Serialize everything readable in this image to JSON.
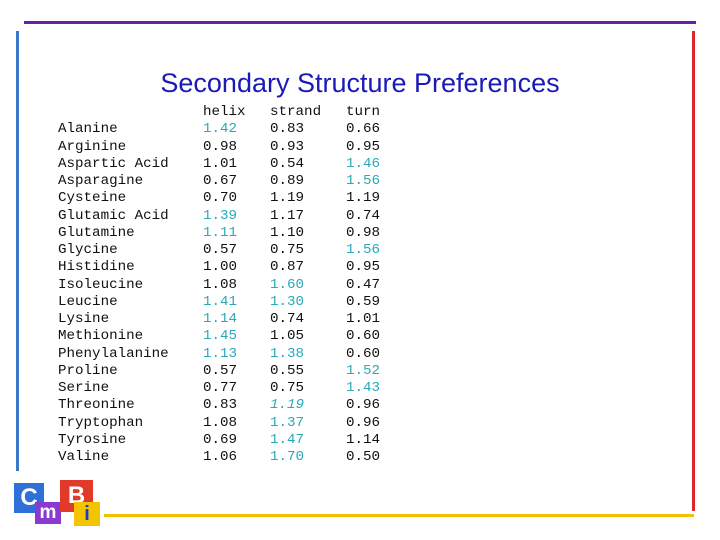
{
  "title": "Secondary Structure Preferences",
  "table": {
    "headers": {
      "name": "",
      "helix": "helix",
      "strand": "strand",
      "turn": "turn"
    },
    "highlight_color": "#2aa9b8",
    "rows": [
      {
        "name": "Alanine",
        "helix": "1.42",
        "strand": "0.83",
        "turn": "0.66",
        "hi_helix": true,
        "hi_strand": false,
        "hi_turn": false
      },
      {
        "name": "Arginine",
        "helix": "0.98",
        "strand": "0.93",
        "turn": "0.95",
        "hi_helix": false,
        "hi_strand": false,
        "hi_turn": false
      },
      {
        "name": "Aspartic Acid",
        "helix": "1.01",
        "strand": "0.54",
        "turn": "1.46",
        "hi_helix": false,
        "hi_strand": false,
        "hi_turn": true
      },
      {
        "name": "Asparagine",
        "helix": "0.67",
        "strand": "0.89",
        "turn": "1.56",
        "hi_helix": false,
        "hi_strand": false,
        "hi_turn": true
      },
      {
        "name": "Cysteine",
        "helix": "0.70",
        "strand": "1.19",
        "turn": "1.19",
        "hi_helix": false,
        "hi_strand": false,
        "hi_turn": false
      },
      {
        "name": "Glutamic Acid",
        "helix": "1.39",
        "strand": "1.17",
        "turn": "0.74",
        "hi_helix": true,
        "hi_strand": false,
        "hi_turn": false
      },
      {
        "name": "Glutamine",
        "helix": "1.11",
        "strand": "1.10",
        "turn": "0.98",
        "hi_helix": true,
        "hi_strand": false,
        "hi_turn": false
      },
      {
        "name": "Glycine",
        "helix": "0.57",
        "strand": "0.75",
        "turn": "1.56",
        "hi_helix": false,
        "hi_strand": false,
        "hi_turn": true
      },
      {
        "name": "Histidine",
        "helix": "1.00",
        "strand": "0.87",
        "turn": "0.95",
        "hi_helix": false,
        "hi_strand": false,
        "hi_turn": false
      },
      {
        "name": "Isoleucine",
        "helix": "1.08",
        "strand": "1.60",
        "turn": "0.47",
        "hi_helix": false,
        "hi_strand": true,
        "hi_turn": false
      },
      {
        "name": "Leucine",
        "helix": "1.41",
        "strand": "1.30",
        "turn": "0.59",
        "hi_helix": true,
        "hi_strand": true,
        "hi_turn": false
      },
      {
        "name": "Lysine",
        "helix": "1.14",
        "strand": "0.74",
        "turn": "1.01",
        "hi_helix": true,
        "hi_strand": false,
        "hi_turn": false
      },
      {
        "name": "Methionine",
        "helix": "1.45",
        "strand": "1.05",
        "turn": "0.60",
        "hi_helix": true,
        "hi_strand": false,
        "hi_turn": false
      },
      {
        "name": "Phenylalanine",
        "helix": "1.13",
        "strand": "1.38",
        "turn": "0.60",
        "hi_helix": true,
        "hi_strand": true,
        "hi_turn": false
      },
      {
        "name": "Proline",
        "helix": "0.57",
        "strand": "0.55",
        "turn": "1.52",
        "hi_helix": false,
        "hi_strand": false,
        "hi_turn": true
      },
      {
        "name": "Serine",
        "helix": "0.77",
        "strand": "0.75",
        "turn": "1.43",
        "hi_helix": false,
        "hi_strand": false,
        "hi_turn": true
      },
      {
        "name": "Threonine",
        "helix": "0.83",
        "strand": "1.19",
        "turn": "0.96",
        "hi_helix": false,
        "hi_strand": true,
        "hi_turn": false,
        "italic_strand": true
      },
      {
        "name": "Tryptophan",
        "helix": "1.08",
        "strand": "1.37",
        "turn": "0.96",
        "hi_helix": false,
        "hi_strand": true,
        "hi_turn": false
      },
      {
        "name": "Tyrosine",
        "helix": "0.69",
        "strand": "1.47",
        "turn": "1.14",
        "hi_helix": false,
        "hi_strand": true,
        "hi_turn": false
      },
      {
        "name": "Valine",
        "helix": "1.06",
        "strand": "1.70",
        "turn": "0.50",
        "hi_helix": false,
        "hi_strand": true,
        "hi_turn": false
      }
    ]
  },
  "logo": {
    "c": "C",
    "m": "m",
    "b": "B",
    "i": "i"
  },
  "colors": {
    "title": "#1a1ab8",
    "rule_top": "#6a1bb0",
    "rule_right": "#e0242e",
    "rule_left": "#3a78c8",
    "rule_bottom": "#f2c200"
  }
}
